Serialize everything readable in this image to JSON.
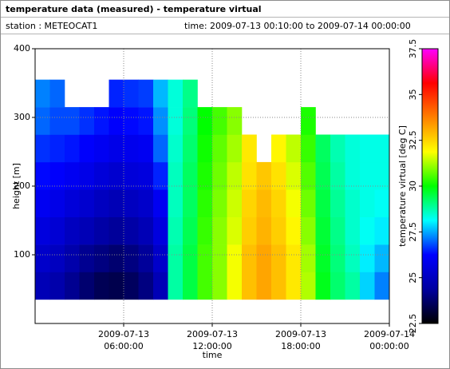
{
  "header": {
    "title": "temperature data (measured) - temperature virtual",
    "station": "station : METEOCAT1",
    "time": "time: 2009-07-13 00:10:00 to 2009-07-14 00:00:00"
  },
  "chart_data": {
    "type": "heatmap",
    "xlabel": "time",
    "ylabel": "height [m]",
    "colorbar_label": "temperature virtual [deg C]",
    "x": [
      "2009-07-13 00:00:00",
      "2009-07-13 01:00:00",
      "2009-07-13 02:00:00",
      "2009-07-13 03:00:00",
      "2009-07-13 04:00:00",
      "2009-07-13 05:00:00",
      "2009-07-13 06:00:00",
      "2009-07-13 07:00:00",
      "2009-07-13 08:00:00",
      "2009-07-13 09:00:00",
      "2009-07-13 10:00:00",
      "2009-07-13 11:00:00",
      "2009-07-13 12:00:00",
      "2009-07-13 13:00:00",
      "2009-07-13 14:00:00",
      "2009-07-13 15:00:00",
      "2009-07-13 16:00:00",
      "2009-07-13 17:00:00",
      "2009-07-13 18:00:00",
      "2009-07-13 19:00:00",
      "2009-07-13 20:00:00",
      "2009-07-13 21:00:00",
      "2009-07-13 22:00:00",
      "2009-07-13 23:00:00",
      "2009-07-14 00:00:00"
    ],
    "y": [
      35,
      75,
      115,
      155,
      195,
      235,
      275,
      315,
      355
    ],
    "values": [
      [
        24.8,
        25.2,
        25.6,
        26,
        26.3,
        26.6,
        27,
        27.2
      ],
      [
        24.6,
        25,
        25.4,
        25.8,
        26.2,
        26.5,
        26.8,
        27
      ],
      [
        24.2,
        24.6,
        25,
        25.5,
        26,
        26.4,
        26.8,
        null
      ],
      [
        23.8,
        24.2,
        24.8,
        25.3,
        25.8,
        26.2,
        26.6,
        null
      ],
      [
        23.5,
        24,
        24.5,
        25,
        25.5,
        26,
        26.4,
        null
      ],
      [
        23.4,
        23.8,
        24.3,
        24.8,
        25.3,
        25.8,
        26.2,
        26.5
      ],
      [
        23.6,
        24,
        24.5,
        25,
        25.5,
        25.9,
        26.3,
        26.6
      ],
      [
        24,
        24.3,
        24.8,
        25.2,
        25.6,
        26,
        26.4,
        26.7
      ],
      [
        24.8,
        25.2,
        25.6,
        26,
        26.5,
        27,
        27.3,
        27.6
      ],
      [
        28.8,
        28.8,
        28.7,
        28.6,
        28.6,
        28.5,
        28.4,
        28.4
      ],
      [
        29.5,
        29.5,
        29.4,
        29.3,
        29.3,
        29.2,
        29.1,
        29
      ],
      [
        30.5,
        30.5,
        30.4,
        30.3,
        30.2,
        30.1,
        30,
        null
      ],
      [
        31,
        31,
        31,
        30.9,
        30.8,
        30.7,
        30.5,
        null
      ],
      [
        31.8,
        31.8,
        31.6,
        31.5,
        31.4,
        31.2,
        31,
        null
      ],
      [
        32.8,
        32.8,
        32.6,
        32.5,
        32.3,
        32.2,
        null,
        null
      ],
      [
        33.2,
        33.2,
        33,
        32.9,
        32.7,
        null,
        null,
        null
      ],
      [
        32.8,
        32.8,
        32.6,
        32.5,
        32.3,
        32,
        null,
        null
      ],
      [
        32.2,
        32.2,
        32,
        31.8,
        31.6,
        31.4,
        null,
        null
      ],
      [
        31.3,
        31.2,
        31,
        30.8,
        30.6,
        30.4,
        30.2,
        null
      ],
      [
        29.8,
        29.7,
        29.6,
        29.5,
        29.4,
        29.3,
        null,
        null
      ],
      [
        29.2,
        29.1,
        29,
        28.9,
        28.8,
        28.7,
        null,
        null
      ],
      [
        28.8,
        28.6,
        28.5,
        28.5,
        28.4,
        28.4,
        null,
        null
      ],
      [
        27.8,
        28,
        28.2,
        28.3,
        28.3,
        28.3,
        null,
        null
      ],
      [
        27.2,
        27.6,
        28,
        28.2,
        28.3,
        28.3,
        null,
        null
      ]
    ],
    "xlim": [
      "2009-07-13 00:00:00",
      "2009-07-14 00:00:00"
    ],
    "xticks": [
      {
        "value": "2009-07-13 06:00:00",
        "label": "2009-07-13 06:00:00"
      },
      {
        "value": "2009-07-13 12:00:00",
        "label": "2009-07-13 12:00:00"
      },
      {
        "value": "2009-07-13 18:00:00",
        "label": "2009-07-13 18:00:00"
      },
      {
        "value": "2009-07-14 00:00:00",
        "label": "2009-07-14 00:00:00"
      }
    ],
    "ylim": [
      0,
      400
    ],
    "yticks": [
      100,
      200,
      300,
      400
    ],
    "zlim": [
      22.5,
      37.5
    ],
    "zticks": [
      22.5,
      25,
      27.5,
      30,
      32.5,
      35,
      37.5
    ],
    "colormap": [
      "#000000",
      "#0000a0",
      "#0000ff",
      "#00ffff",
      "#00ff00",
      "#ffff00",
      "#ff8000",
      "#ff0000",
      "#ff00ff"
    ],
    "grid": true
  }
}
